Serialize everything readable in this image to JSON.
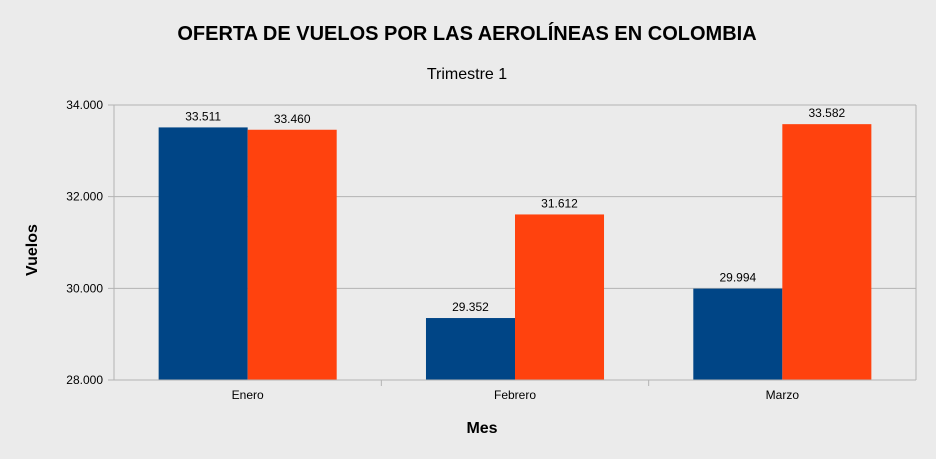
{
  "chart_data": {
    "type": "bar",
    "title": "OFERTA DE VUELOS POR LAS AEROLÍNEAS EN COLOMBIA",
    "subtitle": "Trimestre 1",
    "xlabel": "Mes",
    "ylabel": "Vuelos",
    "categories": [
      "Enero",
      "Febrero",
      "Marzo"
    ],
    "ylim": [
      28000,
      34000
    ],
    "yticks": [
      28000,
      30000,
      32000,
      34000
    ],
    "ytick_labels": [
      "28.000",
      "30.000",
      "32.000",
      "34.000"
    ],
    "grid": true,
    "legend": "none",
    "series": [
      {
        "color": "#004586",
        "values": [
          33511,
          29352,
          29994
        ],
        "labels": [
          "33.511",
          "29.352",
          "29.994"
        ]
      },
      {
        "color": "#ff420e",
        "values": [
          33460,
          31612,
          33582
        ],
        "labels": [
          "33.460",
          "31.612",
          "33.582"
        ]
      }
    ]
  },
  "colors": {
    "background": "#ebebeb",
    "plot_area": "#ebebeb",
    "grid": "#b3b3b3"
  }
}
